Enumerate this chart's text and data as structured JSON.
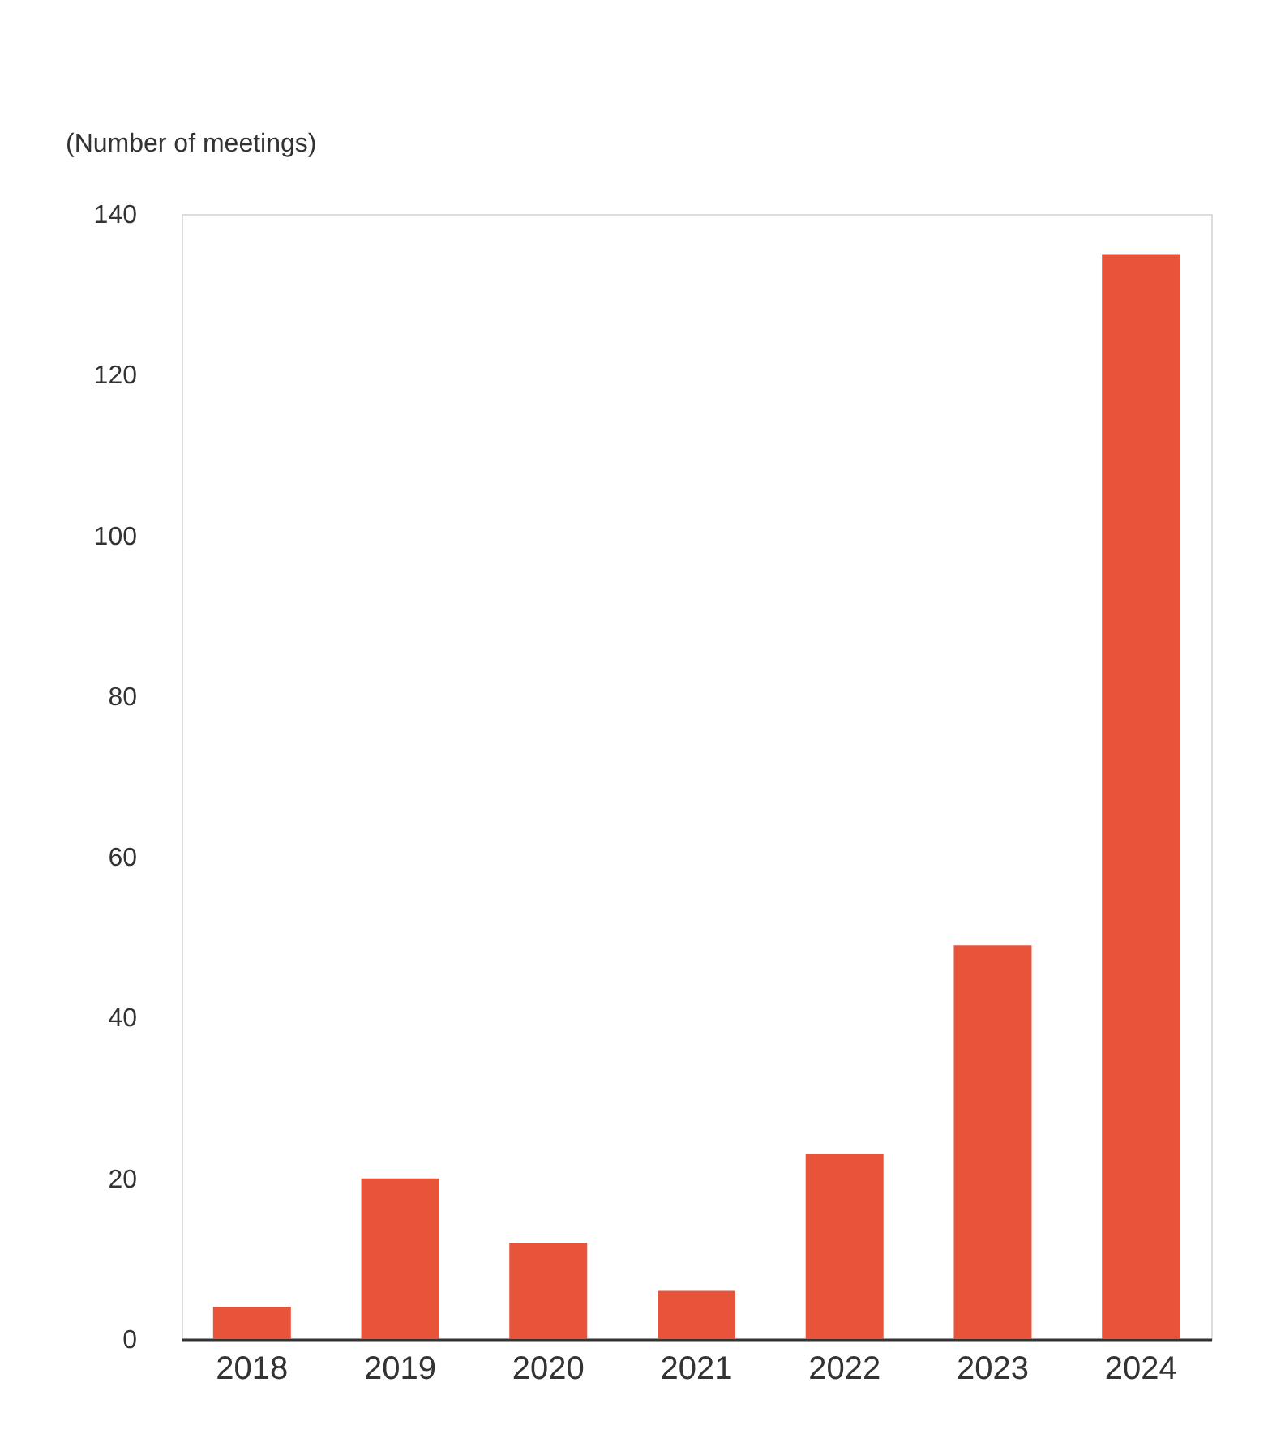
{
  "chart_data": {
    "type": "bar",
    "ylabel": "(Number of meetings)",
    "categories": [
      "2018",
      "2019",
      "2020",
      "2021",
      "2022",
      "2023",
      "2024"
    ],
    "values": [
      4,
      20,
      12,
      6,
      23,
      49,
      135
    ],
    "color": "#e8543a",
    "ylim": [
      0,
      140
    ],
    "yticks": [
      0,
      20,
      40,
      60,
      80,
      100,
      120,
      140
    ],
    "grid": false
  }
}
